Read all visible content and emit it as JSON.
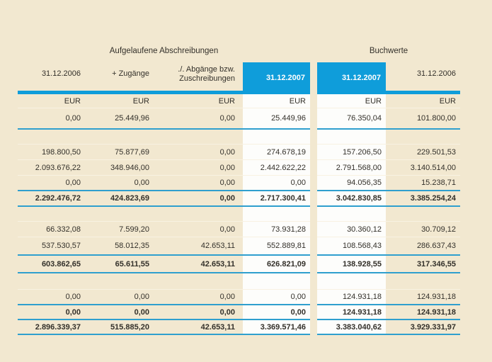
{
  "colors": {
    "background": "#f2e8d0",
    "accent_blue": "#0f9dda",
    "rule_blue": "#2f9fce",
    "highlight_column_white": "#fdfdfb",
    "row_separator": "#f8f2e2",
    "text": "#33302a",
    "text_on_blue": "#ffffff"
  },
  "table": {
    "group_headers": [
      {
        "label": "Aufgelaufene Abschreibungen"
      },
      {
        "label": "Buchwerte"
      }
    ],
    "column_headers": [
      {
        "label": "31.12.2006",
        "highlighted": false
      },
      {
        "label": "+ Zugänge",
        "highlighted": false
      },
      {
        "label": "./. Abgänge bzw.\nZuschreibungen",
        "highlighted": false
      },
      {
        "label": "31.12.2007",
        "highlighted": true
      },
      {
        "label": "31.12.2007",
        "highlighted": true
      },
      {
        "label": "31.12.2006",
        "highlighted": false
      }
    ],
    "units": [
      "EUR",
      "EUR",
      "EUR",
      "EUR",
      "EUR",
      "EUR"
    ],
    "rows": [
      {
        "type": "data",
        "rule_below": "blue",
        "values": [
          "0,00",
          "25.449,96",
          "0,00",
          "25.449,96",
          "76.350,04",
          "101.800,00"
        ]
      },
      {
        "type": "gap",
        "rule_below": "thin",
        "values": [
          "",
          "",
          "",
          "",
          "",
          ""
        ]
      },
      {
        "type": "data",
        "rule_below": "thin",
        "values": [
          "198.800,50",
          "75.877,69",
          "0,00",
          "274.678,19",
          "157.206,50",
          "229.501,53"
        ]
      },
      {
        "type": "data",
        "rule_below": "thin",
        "values": [
          "2.093.676,22",
          "348.946,00",
          "0,00",
          "2.442.622,22",
          "2.791.568,00",
          "3.140.514,00"
        ]
      },
      {
        "type": "data",
        "rule_below": "blue",
        "values": [
          "0,00",
          "0,00",
          "0,00",
          "0,00",
          "94.056,35",
          "15.238,71"
        ]
      },
      {
        "type": "subtotal",
        "rule_below": "blue",
        "values": [
          "2.292.476,72",
          "424.823,69",
          "0,00",
          "2.717.300,41",
          "3.042.830,85",
          "3.385.254,24"
        ]
      },
      {
        "type": "gap",
        "rule_below": "thin",
        "values": [
          "",
          "",
          "",
          "",
          "",
          ""
        ]
      },
      {
        "type": "data",
        "rule_below": "thin",
        "values": [
          "66.332,08",
          "7.599,20",
          "0,00",
          "73.931,28",
          "30.360,12",
          "30.709,12"
        ]
      },
      {
        "type": "data",
        "rule_below": "blue",
        "values": [
          "537.530,57",
          "58.012,35",
          "42.653,11",
          "552.889,81",
          "108.568,43",
          "286.637,43"
        ]
      },
      {
        "type": "subtotal",
        "rule_below": "blue",
        "values": [
          "603.862,65",
          "65.611,55",
          "42.653,11",
          "626.821,09",
          "138.928,55",
          "317.346,55"
        ]
      },
      {
        "type": "gap",
        "rule_below": "thin",
        "values": [
          "",
          "",
          "",
          "",
          "",
          ""
        ]
      },
      {
        "type": "data",
        "rule_below": "blue",
        "values": [
          "0,00",
          "0,00",
          "0,00",
          "0,00",
          "124.931,18",
          "124.931,18"
        ]
      },
      {
        "type": "subtotal",
        "rule_below": "blue",
        "values": [
          "0,00",
          "0,00",
          "0,00",
          "0,00",
          "124.931,18",
          "124.931,18"
        ]
      },
      {
        "type": "total",
        "rule_below": "blue",
        "values": [
          "2.896.339,37",
          "515.885,20",
          "42.653,11",
          "3.369.571,46",
          "3.383.040,62",
          "3.929.331,97"
        ]
      }
    ]
  }
}
